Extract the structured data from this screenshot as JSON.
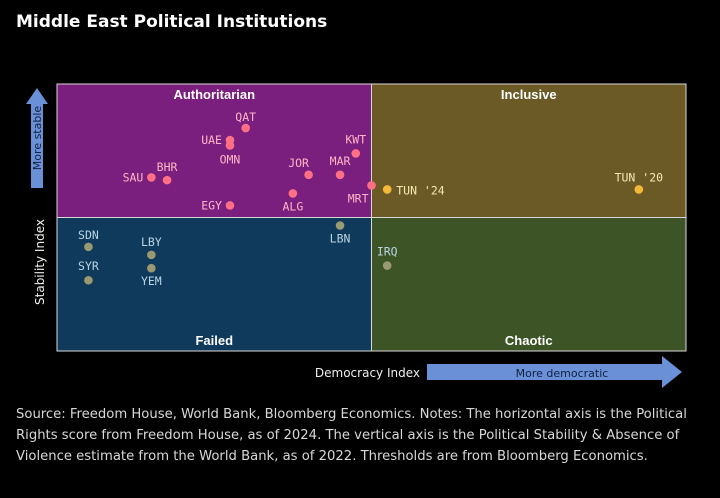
{
  "chart_data": {
    "type": "scatter",
    "title": "Middle East Political Institutions",
    "xlabel": "Democracy Index",
    "ylabel": "Stability Index",
    "x_arrow_label": "More democratic",
    "y_arrow_label": "More stable",
    "xlim": [
      0,
      40
    ],
    "ylim": [
      -2,
      2
    ],
    "x_threshold": 20,
    "y_threshold": 0,
    "quadrants": {
      "top_left": "Authoritarian",
      "top_right": "Inclusive",
      "bottom_left": "Failed",
      "bottom_right": "Chaotic"
    },
    "colors": {
      "authoritarian": "#7a1f7e",
      "inclusive": "#6b5a26",
      "failed": "#103a5c",
      "chaotic": "#3d5526",
      "dot_pink": "#ff6f86",
      "dot_yellow": "#f5b93a",
      "dot_khaki": "#9a9a72",
      "arrow": "#6a90d8"
    },
    "points": [
      {
        "label": "QAT",
        "x": 12,
        "y": 1.34,
        "group": "authoritarian"
      },
      {
        "label": "UAE",
        "x": 11,
        "y": 1.16,
        "group": "authoritarian"
      },
      {
        "label": "OMN",
        "x": 11,
        "y": 1.08,
        "group": "authoritarian"
      },
      {
        "label": "KWT",
        "x": 19,
        "y": 0.96,
        "group": "authoritarian"
      },
      {
        "label": "BHR",
        "x": 7,
        "y": 0.56,
        "group": "authoritarian"
      },
      {
        "label": "SAU",
        "x": 6,
        "y": 0.6,
        "group": "authoritarian"
      },
      {
        "label": "JOR",
        "x": 16,
        "y": 0.64,
        "group": "authoritarian"
      },
      {
        "label": "MAR",
        "x": 18,
        "y": 0.64,
        "group": "authoritarian"
      },
      {
        "label": "MRT",
        "x": 20,
        "y": 0.48,
        "group": "authoritarian"
      },
      {
        "label": "EGY",
        "x": 11,
        "y": 0.18,
        "group": "authoritarian"
      },
      {
        "label": "ALG",
        "x": 15,
        "y": 0.36,
        "group": "authoritarian"
      },
      {
        "label": "TUN '24",
        "x": 21,
        "y": 0.42,
        "group": "inclusive"
      },
      {
        "label": "TUN '20",
        "x": 37,
        "y": 0.42,
        "group": "inclusive"
      },
      {
        "label": "LBN",
        "x": 18,
        "y": -0.12,
        "group": "failed"
      },
      {
        "label": "SDN",
        "x": 2,
        "y": -0.44,
        "group": "failed"
      },
      {
        "label": "LBY",
        "x": 6,
        "y": -0.56,
        "group": "failed"
      },
      {
        "label": "SYR",
        "x": 2,
        "y": -0.94,
        "group": "failed"
      },
      {
        "label": "YEM",
        "x": 6,
        "y": -0.76,
        "group": "failed"
      },
      {
        "label": "IRQ",
        "x": 21,
        "y": -0.72,
        "group": "chaotic"
      }
    ]
  },
  "source_note": "Source: Freedom House, World Bank, Bloomberg Economics. Notes: The horizontal axis is the Political Rights score from Freedom House, as of 2024. The vertical axis is the Political Stability & Absence of Violence estimate from the World Bank, as of 2022. Thresholds are from Bloomberg Economics."
}
